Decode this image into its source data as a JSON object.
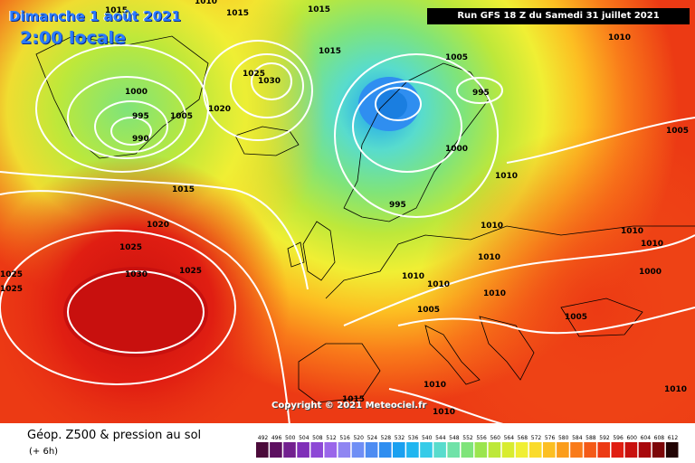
{
  "header": {
    "date": "Dimanche 1 août 2021",
    "time": "2:00 locale",
    "run": "Run GFS 18 Z du Samedi 31 juillet 2021"
  },
  "footer": {
    "copyright": "Copyright © 2021 Meteociel.fr",
    "title": "Géop. Z500 & pression au sol",
    "offset": "(+ 6h)"
  },
  "scale": {
    "values": [
      "492",
      "496",
      "500",
      "504",
      "508",
      "512",
      "516",
      "520",
      "524",
      "528",
      "532",
      "536",
      "540",
      "544",
      "548",
      "552",
      "556",
      "560",
      "564",
      "568",
      "572",
      "576",
      "580",
      "584",
      "588",
      "592",
      "596",
      "600",
      "604",
      "608",
      "612"
    ],
    "colors": [
      "#4b0a3a",
      "#5d1060",
      "#72208f",
      "#7f2fb8",
      "#8d48d6",
      "#9a66ea",
      "#8f86f2",
      "#6f8ef5",
      "#4d8cf2",
      "#2f8ef0",
      "#1aa0f0",
      "#20b6f0",
      "#36cbe8",
      "#58dccd",
      "#70e2a8",
      "#7fe47a",
      "#9be54e",
      "#bde83a",
      "#d8ec30",
      "#f0ef34",
      "#fadb2c",
      "#fcbf22",
      "#fb9d1c",
      "#f97b1a",
      "#f45a18",
      "#ec3a14",
      "#e01e12",
      "#c8100e",
      "#a8080c",
      "#7c0608",
      "#220404"
    ]
  },
  "isobars": [
    {
      "text": "1015"
    },
    {
      "text": "1015"
    },
    {
      "text": "1010"
    },
    {
      "text": "1015"
    },
    {
      "text": "1010"
    },
    {
      "text": "1000"
    },
    {
      "text": "995"
    },
    {
      "text": "990"
    },
    {
      "text": "1005"
    },
    {
      "text": "1020"
    },
    {
      "text": "1030"
    },
    {
      "text": "1025"
    },
    {
      "text": "1015"
    },
    {
      "text": "1015"
    },
    {
      "text": "1005"
    },
    {
      "text": "995"
    },
    {
      "text": "1000"
    },
    {
      "text": "995"
    },
    {
      "text": "1010"
    },
    {
      "text": "1010"
    },
    {
      "text": "1010"
    },
    {
      "text": "1020"
    },
    {
      "text": "1025"
    },
    {
      "text": "1030"
    },
    {
      "text": "1025"
    },
    {
      "text": "1025"
    },
    {
      "text": "1025"
    },
    {
      "text": "1010"
    },
    {
      "text": "1010"
    },
    {
      "text": "1005"
    },
    {
      "text": "1010"
    },
    {
      "text": "1010"
    },
    {
      "text": "1010"
    },
    {
      "text": "1000"
    },
    {
      "text": "1005"
    },
    {
      "text": "1005"
    },
    {
      "text": "1010"
    },
    {
      "text": "1010"
    },
    {
      "text": "1015"
    },
    {
      "text": "1010"
    }
  ]
}
